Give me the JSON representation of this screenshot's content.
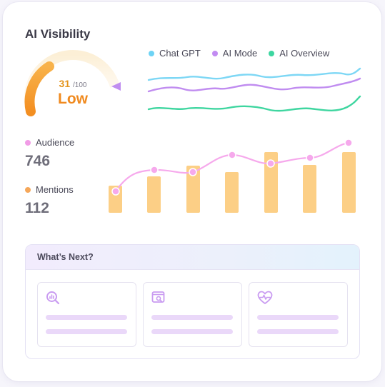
{
  "card": {
    "title": "AI Visibility"
  },
  "gauge": {
    "score": "31",
    "max": "/100",
    "label": "Low",
    "value_fraction": 0.31,
    "colors": {
      "fill": "#f5a33a",
      "track": "#fcefd9",
      "marker": "#c08ef0"
    }
  },
  "legend": [
    {
      "label": "Chat GPT",
      "color": "#6dd3f5"
    },
    {
      "label": "AI Mode",
      "color": "#c28bf2"
    },
    {
      "label": "AI Overview",
      "color": "#3cd6a0"
    }
  ],
  "stats": {
    "audience": {
      "label": "Audience",
      "value": "746",
      "color": "#f19ce6"
    },
    "mentions": {
      "label": "Mentions",
      "value": "112",
      "color": "#f5a75a"
    }
  },
  "whats_next": {
    "title": "What’s Next?",
    "tiles": [
      {
        "icon": "search-chart-icon"
      },
      {
        "icon": "browser-search-icon"
      },
      {
        "icon": "heart-pulse-icon"
      }
    ]
  },
  "colors": {
    "bar": "#fccf86",
    "audience_line": "#f6a9ec",
    "tile_bar": "#ead8f9",
    "icon": "#c99bf1"
  }
}
